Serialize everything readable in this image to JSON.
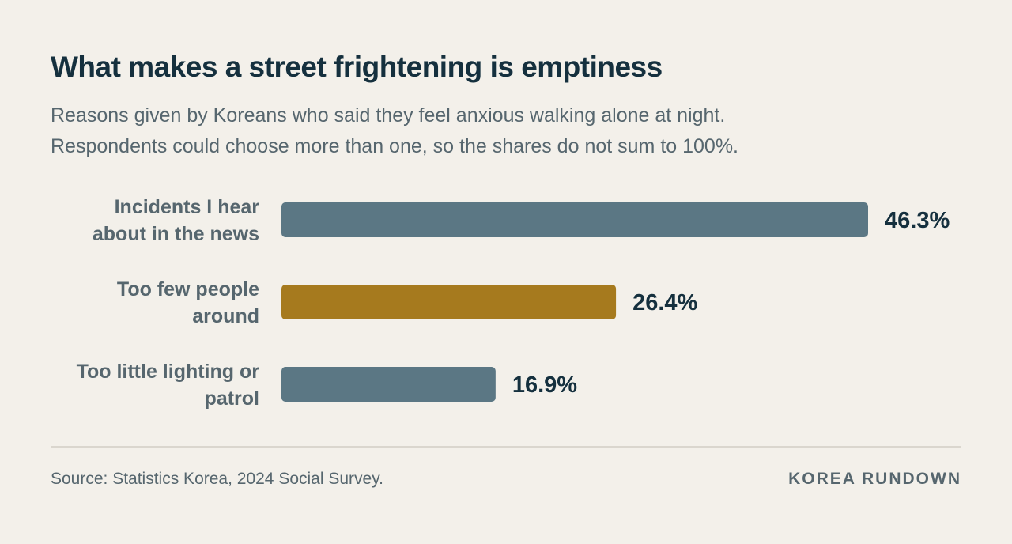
{
  "chart_data": {
    "type": "bar",
    "orientation": "horizontal",
    "title": "What makes a street frightening is emptiness",
    "subtitle": [
      "Reasons given by Koreans who said they feel anxious walking alone at night.",
      "Respondents could choose more than one, so the shares do not sum to 100%."
    ],
    "categories": [
      [
        "Incidents I hear",
        "about in the news"
      ],
      [
        "Too few people",
        "around"
      ],
      [
        "Too little lighting or",
        "patrol"
      ]
    ],
    "values": [
      46.3,
      26.4,
      16.9
    ],
    "value_labels": [
      "46.3%",
      "26.4%",
      "16.9%"
    ],
    "unit": "%",
    "highlight_index": 1,
    "colors": {
      "default": "#5b7784",
      "highlight": "#a67a1e"
    },
    "xlim": [
      0,
      46.3
    ],
    "grid": false,
    "legend": "none",
    "xlabel": "",
    "ylabel": ""
  },
  "footer": {
    "source": "Source: Statistics Korea, 2024 Social Survey.",
    "brand": "KOREA RUNDOWN"
  }
}
